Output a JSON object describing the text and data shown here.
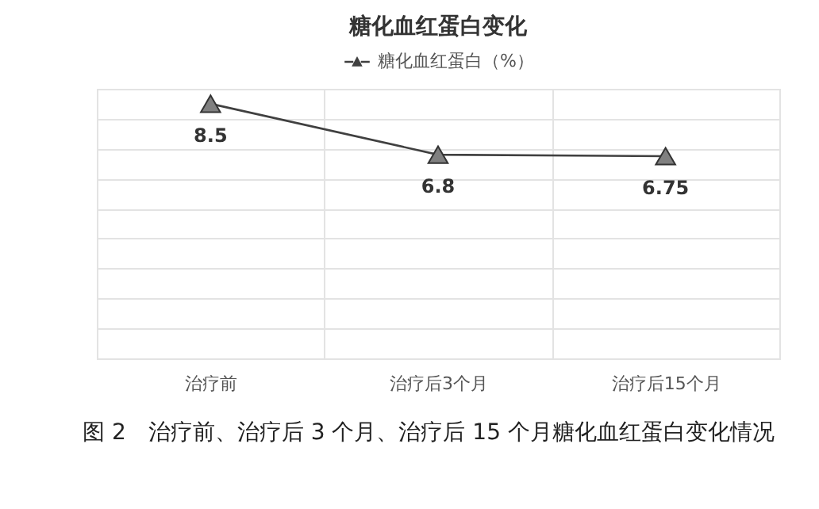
{
  "chart_data": {
    "type": "line",
    "title": "糖化血红蛋白变化",
    "categories": [
      "治疗前",
      "治疗后3个月",
      "治疗后15个月"
    ],
    "series": [
      {
        "name": "糖化血红蛋白（%）",
        "color": "#404040",
        "values": [
          8.5,
          6.8,
          6.75
        ]
      }
    ],
    "ylim": [
      0,
      9
    ],
    "yticks": [
      {
        "value": 0,
        "label": null
      },
      {
        "value": 1,
        "label": null
      },
      {
        "value": 2,
        "label": null
      },
      {
        "value": 3,
        "label": null
      },
      {
        "value": 4,
        "label": null
      },
      {
        "value": 5,
        "label": null
      },
      {
        "value": 6,
        "label": null
      },
      {
        "value": 7,
        "label": null
      },
      {
        "value": 8,
        "label": null
      },
      {
        "value": 9,
        "label": null
      }
    ],
    "tick_labels": "x",
    "grid": true,
    "legend": "top",
    "marker": "triangle",
    "line_style": "solid",
    "data_labels": true,
    "annotations": [
      "图 2　治疗前、治疗后 3 个月、治疗后 15 个月糖化血红蛋白变化情况"
    ]
  }
}
